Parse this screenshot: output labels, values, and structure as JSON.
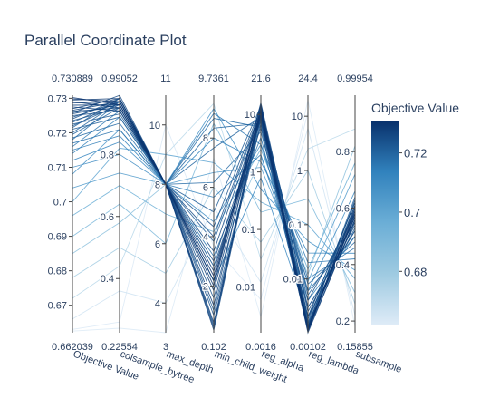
{
  "chart_data": {
    "type": "parallel_coordinates",
    "title": "Parallel Coordinate Plot",
    "colorbar": {
      "title": "Objective Value",
      "colorscale": "Blues",
      "cmin": 0.662039,
      "cmax": 0.730889,
      "tick_values": [
        0.68,
        0.7,
        0.72
      ],
      "tick_labels": [
        "0.68",
        "0.7",
        "0.72"
      ]
    },
    "axes": [
      {
        "label": "Objective Value",
        "range": [
          0.662039,
          0.730889
        ],
        "range_labels": [
          "0.662039",
          "0.730889"
        ],
        "log": false,
        "ticks": [
          0.67,
          0.68,
          0.69,
          0.7,
          0.71,
          0.72,
          0.73
        ],
        "tick_labels": [
          "0.67",
          "0.68",
          "0.69",
          "0.7",
          "0.71",
          "0.72",
          "0.73"
        ]
      },
      {
        "label": "colsample_bytree",
        "range": [
          0.22554,
          0.99052
        ],
        "range_labels": [
          "0.22554",
          "0.99052"
        ],
        "log": false,
        "ticks": [
          0.4,
          0.6,
          0.8
        ],
        "tick_labels": [
          "0.4",
          "0.6",
          "0.8"
        ]
      },
      {
        "label": "max_depth",
        "range": [
          3,
          11
        ],
        "range_labels": [
          "3",
          "11"
        ],
        "log": false,
        "ticks": [
          4,
          6,
          8,
          10
        ],
        "tick_labels": [
          "4",
          "6",
          "8",
          "10"
        ]
      },
      {
        "label": "min_child_weight",
        "range": [
          0.102,
          9.7361
        ],
        "range_labels": [
          "0.102",
          "9.7361"
        ],
        "log": false,
        "ticks": [
          2,
          4,
          6,
          8
        ],
        "tick_labels": [
          "2",
          "4",
          "6",
          "8"
        ]
      },
      {
        "label": "reg_alpha",
        "range": [
          0.0016,
          21.6
        ],
        "range_labels": [
          "0.0016",
          "21.6"
        ],
        "log": true,
        "ticks": [
          0.01,
          0.1,
          1,
          10
        ],
        "tick_labels": [
          "0.01",
          "0.1",
          "1",
          "10"
        ]
      },
      {
        "label": "reg_lambda",
        "range": [
          0.00102,
          24.4
        ],
        "range_labels": [
          "0.00102",
          "24.4"
        ],
        "log": true,
        "ticks": [
          0.01,
          0.1,
          1,
          10
        ],
        "tick_labels": [
          "0.01",
          "0.1",
          "1",
          "10"
        ]
      },
      {
        "label": "subsample",
        "range": [
          0.15855,
          0.99954
        ],
        "range_labels": [
          "0.15855",
          "0.99954"
        ],
        "log": false,
        "ticks": [
          0.2,
          0.4,
          0.6,
          0.8
        ],
        "tick_labels": [
          "0.2",
          "0.4",
          "0.6",
          "0.8"
        ]
      }
    ],
    "trials": [
      {
        "objective": 0.7298,
        "values": [
          0.97,
          8.0,
          2.2,
          10.0,
          0.0012,
          0.58
        ]
      },
      {
        "objective": 0.7302,
        "values": [
          0.96,
          8.0,
          2.4,
          12.0,
          0.0011,
          0.59
        ]
      },
      {
        "objective": 0.7295,
        "values": [
          0.98,
          8.0,
          2.0,
          15.0,
          0.0013,
          0.57
        ]
      },
      {
        "objective": 0.729,
        "values": [
          0.95,
          8.0,
          1.8,
          11.0,
          0.0012,
          0.6
        ]
      },
      {
        "objective": 0.7286,
        "values": [
          0.97,
          8.0,
          2.6,
          9.0,
          0.001,
          0.56
        ]
      },
      {
        "objective": 0.728,
        "values": [
          0.96,
          8.0,
          1.2,
          13.0,
          0.0011,
          0.61
        ]
      },
      {
        "objective": 0.7275,
        "values": [
          0.94,
          8.0,
          0.5,
          12.0,
          0.0012,
          0.58
        ]
      },
      {
        "objective": 0.727,
        "values": [
          0.98,
          8.0,
          0.3,
          14.0,
          0.0014,
          0.55
        ]
      },
      {
        "objective": 0.7265,
        "values": [
          0.97,
          8.0,
          3.0,
          8.0,
          0.002,
          0.62
        ]
      },
      {
        "objective": 0.7262,
        "values": [
          0.95,
          8.0,
          3.4,
          10.0,
          0.0018,
          0.59
        ]
      },
      {
        "objective": 0.7258,
        "values": [
          0.99,
          8.0,
          0.2,
          11.0,
          0.0015,
          0.57
        ]
      },
      {
        "objective": 0.7255,
        "values": [
          0.96,
          8.0,
          2.2,
          16.0,
          0.0025,
          0.54
        ]
      },
      {
        "objective": 0.725,
        "values": [
          0.94,
          8.0,
          0.8,
          7.0,
          0.0013,
          0.63
        ]
      },
      {
        "objective": 0.7245,
        "values": [
          0.97,
          8.0,
          4.0,
          12.0,
          0.003,
          0.52
        ]
      },
      {
        "objective": 0.724,
        "values": [
          0.98,
          8.0,
          1.5,
          9.0,
          0.0012,
          0.6
        ]
      },
      {
        "objective": 0.7235,
        "values": [
          0.95,
          8.0,
          4.4,
          13.0,
          0.004,
          0.58
        ]
      },
      {
        "objective": 0.723,
        "values": [
          0.97,
          8.0,
          2.8,
          6.0,
          0.0011,
          0.56
        ]
      },
      {
        "objective": 0.7225,
        "values": [
          0.93,
          8.0,
          0.4,
          10.0,
          0.0016,
          0.61
        ]
      },
      {
        "objective": 0.722,
        "values": [
          0.96,
          8.0,
          3.8,
          11.0,
          0.005,
          0.55
        ]
      },
      {
        "objective": 0.7215,
        "values": [
          0.98,
          8.0,
          5.0,
          14.0,
          0.002,
          0.53
        ]
      },
      {
        "objective": 0.721,
        "values": [
          0.92,
          8.0,
          1.0,
          8.0,
          0.0013,
          0.64
        ]
      },
      {
        "objective": 0.72,
        "values": [
          0.97,
          8.0,
          7.6,
          9.0,
          0.006,
          0.5
        ]
      },
      {
        "objective": 0.7195,
        "values": [
          0.95,
          8.0,
          8.4,
          7.0,
          0.008,
          0.48
        ]
      },
      {
        "objective": 0.7185,
        "values": [
          0.9,
          8.0,
          6.2,
          5.0,
          0.003,
          0.52
        ]
      },
      {
        "objective": 0.718,
        "values": [
          0.97,
          8.0,
          8.8,
          6.0,
          0.01,
          0.46
        ]
      },
      {
        "objective": 0.717,
        "values": [
          0.88,
          8.0,
          3.2,
          4.0,
          0.0015,
          0.57
        ]
      },
      {
        "objective": 0.716,
        "values": [
          0.94,
          8.0,
          9.0,
          3.0,
          0.02,
          0.42
        ]
      },
      {
        "objective": 0.715,
        "values": [
          0.86,
          8.0,
          5.6,
          2.0,
          0.004,
          0.5
        ]
      },
      {
        "objective": 0.714,
        "values": [
          0.92,
          8.0,
          8.0,
          1.5,
          0.03,
          0.44
        ]
      },
      {
        "objective": 0.712,
        "values": [
          0.84,
          8.0,
          2.2,
          0.8,
          0.002,
          0.62
        ]
      },
      {
        "objective": 0.71,
        "values": [
          0.8,
          8.0,
          4.6,
          3.0,
          0.006,
          0.66
        ]
      },
      {
        "objective": 0.708,
        "values": [
          0.88,
          8.0,
          9.2,
          0.5,
          0.05,
          0.38
        ]
      },
      {
        "objective": 0.704,
        "values": [
          0.74,
          8.0,
          6.6,
          1.2,
          0.009,
          0.72
        ]
      },
      {
        "objective": 0.7,
        "values": [
          0.82,
          9.0,
          7.0,
          0.3,
          0.1,
          0.35
        ]
      },
      {
        "objective": 0.696,
        "values": [
          0.7,
          7.0,
          4.2,
          2.5,
          0.015,
          0.76
        ]
      },
      {
        "objective": 0.69,
        "values": [
          0.64,
          6.0,
          8.6,
          0.2,
          0.3,
          0.3
        ]
      },
      {
        "objective": 0.685,
        "values": [
          0.58,
          8.0,
          2.8,
          1.8,
          0.012,
          0.82
        ]
      },
      {
        "objective": 0.678,
        "values": [
          0.5,
          5.0,
          6.0,
          0.06,
          1.0,
          0.26
        ]
      },
      {
        "objective": 0.672,
        "values": [
          0.44,
          9.0,
          9.4,
          0.03,
          2.5,
          0.88
        ]
      },
      {
        "objective": 0.666,
        "values": [
          0.36,
          4.0,
          5.2,
          0.012,
          6.0,
          0.22
        ]
      },
      {
        "objective": 0.663,
        "values": [
          0.26,
          10.0,
          3.6,
          0.006,
          12.0,
          0.94
        ]
      },
      {
        "objective": 0.6625,
        "values": [
          0.24,
          3.0,
          7.2,
          0.003,
          20.0,
          0.18
        ]
      }
    ]
  }
}
